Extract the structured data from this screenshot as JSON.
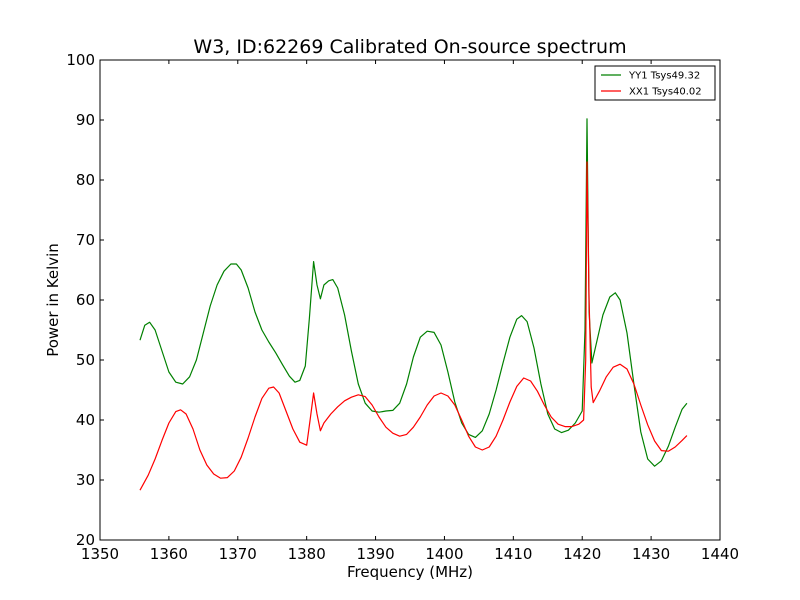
{
  "chart_data": {
    "type": "line",
    "title": "W3, ID:62269 Calibrated On-source spectrum",
    "xlabel": "Frequency (MHz)",
    "ylabel": "Power in Kelvin",
    "xlim": [
      1350,
      1440
    ],
    "ylim": [
      20,
      100
    ],
    "xticks": [
      "1350",
      "1360",
      "1370",
      "1380",
      "1390",
      "1400",
      "1410",
      "1420",
      "1430",
      "1440"
    ],
    "yticks": [
      "20",
      "30",
      "40",
      "50",
      "60",
      "70",
      "80",
      "90",
      "100"
    ],
    "grid": false,
    "legend_position": "top-right",
    "series": [
      {
        "name": "YY1 Tsys49.32",
        "color": "#008000",
        "points": [
          [
            1355.8,
            53.3
          ],
          [
            1356.5,
            55.8
          ],
          [
            1357.2,
            56.3
          ],
          [
            1358.0,
            55.0
          ],
          [
            1359.0,
            51.5
          ],
          [
            1360.0,
            48.0
          ],
          [
            1361.0,
            46.3
          ],
          [
            1362.0,
            46.0
          ],
          [
            1363.0,
            47.2
          ],
          [
            1364.0,
            50.0
          ],
          [
            1365.0,
            54.5
          ],
          [
            1366.0,
            59.0
          ],
          [
            1367.0,
            62.5
          ],
          [
            1368.0,
            64.8
          ],
          [
            1369.0,
            66.0
          ],
          [
            1369.8,
            66.0
          ],
          [
            1370.5,
            65.0
          ],
          [
            1371.5,
            62.0
          ],
          [
            1372.5,
            58.0
          ],
          [
            1373.5,
            55.0
          ],
          [
            1374.5,
            53.0
          ],
          [
            1375.5,
            51.2
          ],
          [
            1376.5,
            49.2
          ],
          [
            1377.5,
            47.3
          ],
          [
            1378.3,
            46.3
          ],
          [
            1379.0,
            46.6
          ],
          [
            1379.8,
            49.0
          ],
          [
            1380.4,
            57.0
          ],
          [
            1381.0,
            66.4
          ],
          [
            1381.5,
            62.5
          ],
          [
            1382.0,
            60.2
          ],
          [
            1382.5,
            62.5
          ],
          [
            1383.2,
            63.2
          ],
          [
            1383.8,
            63.4
          ],
          [
            1384.5,
            62.0
          ],
          [
            1385.5,
            57.5
          ],
          [
            1386.5,
            51.5
          ],
          [
            1387.5,
            46.0
          ],
          [
            1388.5,
            42.8
          ],
          [
            1389.5,
            41.5
          ],
          [
            1390.5,
            41.3
          ],
          [
            1391.5,
            41.5
          ],
          [
            1392.5,
            41.6
          ],
          [
            1393.5,
            42.8
          ],
          [
            1394.5,
            46.0
          ],
          [
            1395.5,
            50.5
          ],
          [
            1396.5,
            53.8
          ],
          [
            1397.5,
            54.8
          ],
          [
            1398.5,
            54.6
          ],
          [
            1399.5,
            52.5
          ],
          [
            1400.5,
            48.0
          ],
          [
            1401.5,
            43.0
          ],
          [
            1402.5,
            39.5
          ],
          [
            1403.5,
            37.6
          ],
          [
            1404.5,
            37.1
          ],
          [
            1405.5,
            38.2
          ],
          [
            1406.5,
            41.0
          ],
          [
            1407.5,
            45.0
          ],
          [
            1408.5,
            49.5
          ],
          [
            1409.5,
            53.8
          ],
          [
            1410.5,
            56.8
          ],
          [
            1411.2,
            57.4
          ],
          [
            1412.0,
            56.4
          ],
          [
            1413.0,
            52.0
          ],
          [
            1414.0,
            46.0
          ],
          [
            1415.0,
            41.0
          ],
          [
            1416.0,
            38.5
          ],
          [
            1417.0,
            37.9
          ],
          [
            1418.0,
            38.3
          ],
          [
            1419.0,
            39.5
          ],
          [
            1420.0,
            41.5
          ],
          [
            1420.4,
            55.0
          ],
          [
            1420.7,
            90.2
          ],
          [
            1421.0,
            58.0
          ],
          [
            1421.4,
            49.5
          ],
          [
            1422.0,
            52.5
          ],
          [
            1423.0,
            57.5
          ],
          [
            1424.0,
            60.5
          ],
          [
            1424.8,
            61.2
          ],
          [
            1425.5,
            60.0
          ],
          [
            1426.5,
            54.5
          ],
          [
            1427.5,
            46.0
          ],
          [
            1428.5,
            38.0
          ],
          [
            1429.5,
            33.5
          ],
          [
            1430.5,
            32.3
          ],
          [
            1431.5,
            33.2
          ],
          [
            1432.5,
            35.6
          ],
          [
            1433.5,
            38.8
          ],
          [
            1434.5,
            41.8
          ],
          [
            1435.2,
            42.8
          ]
        ]
      },
      {
        "name": "XX1 Tsys40.02",
        "color": "#ff0000",
        "points": [
          [
            1355.8,
            28.3
          ],
          [
            1357.0,
            30.8
          ],
          [
            1358.0,
            33.5
          ],
          [
            1359.0,
            36.6
          ],
          [
            1360.0,
            39.5
          ],
          [
            1361.0,
            41.4
          ],
          [
            1361.7,
            41.7
          ],
          [
            1362.5,
            41.0
          ],
          [
            1363.5,
            38.5
          ],
          [
            1364.5,
            35.0
          ],
          [
            1365.5,
            32.5
          ],
          [
            1366.5,
            31.0
          ],
          [
            1367.5,
            30.3
          ],
          [
            1368.5,
            30.4
          ],
          [
            1369.5,
            31.5
          ],
          [
            1370.5,
            33.8
          ],
          [
            1371.5,
            37.0
          ],
          [
            1372.5,
            40.5
          ],
          [
            1373.5,
            43.6
          ],
          [
            1374.5,
            45.3
          ],
          [
            1375.2,
            45.5
          ],
          [
            1376.0,
            44.5
          ],
          [
            1377.0,
            41.5
          ],
          [
            1378.0,
            38.5
          ],
          [
            1379.0,
            36.3
          ],
          [
            1380.0,
            35.8
          ],
          [
            1380.5,
            40.0
          ],
          [
            1381.0,
            44.5
          ],
          [
            1381.5,
            41.0
          ],
          [
            1382.0,
            38.2
          ],
          [
            1382.5,
            39.5
          ],
          [
            1383.5,
            41.0
          ],
          [
            1384.5,
            42.2
          ],
          [
            1385.5,
            43.2
          ],
          [
            1386.5,
            43.8
          ],
          [
            1387.5,
            44.2
          ],
          [
            1388.5,
            43.9
          ],
          [
            1389.5,
            42.5
          ],
          [
            1390.5,
            40.5
          ],
          [
            1391.5,
            38.8
          ],
          [
            1392.5,
            37.8
          ],
          [
            1393.5,
            37.3
          ],
          [
            1394.5,
            37.6
          ],
          [
            1395.5,
            38.8
          ],
          [
            1396.5,
            40.5
          ],
          [
            1397.5,
            42.5
          ],
          [
            1398.5,
            44.0
          ],
          [
            1399.5,
            44.5
          ],
          [
            1400.5,
            44.0
          ],
          [
            1401.5,
            42.5
          ],
          [
            1402.5,
            40.0
          ],
          [
            1403.5,
            37.3
          ],
          [
            1404.5,
            35.5
          ],
          [
            1405.5,
            35.0
          ],
          [
            1406.5,
            35.5
          ],
          [
            1407.5,
            37.3
          ],
          [
            1408.5,
            40.0
          ],
          [
            1409.5,
            43.0
          ],
          [
            1410.5,
            45.6
          ],
          [
            1411.5,
            47.0
          ],
          [
            1412.5,
            46.5
          ],
          [
            1413.5,
            44.8
          ],
          [
            1414.5,
            42.5
          ],
          [
            1415.5,
            40.5
          ],
          [
            1416.5,
            39.3
          ],
          [
            1417.5,
            38.9
          ],
          [
            1418.5,
            38.9
          ],
          [
            1419.5,
            39.3
          ],
          [
            1420.2,
            40.0
          ],
          [
            1420.5,
            50.0
          ],
          [
            1420.7,
            83.0
          ],
          [
            1421.0,
            60.0
          ],
          [
            1421.3,
            45.5
          ],
          [
            1421.6,
            42.9
          ],
          [
            1422.5,
            44.8
          ],
          [
            1423.5,
            47.2
          ],
          [
            1424.5,
            48.8
          ],
          [
            1425.5,
            49.3
          ],
          [
            1426.5,
            48.5
          ],
          [
            1427.5,
            46.0
          ],
          [
            1428.5,
            42.5
          ],
          [
            1429.5,
            39.2
          ],
          [
            1430.5,
            36.5
          ],
          [
            1431.5,
            34.9
          ],
          [
            1432.5,
            34.8
          ],
          [
            1433.5,
            35.5
          ],
          [
            1434.5,
            36.6
          ],
          [
            1435.2,
            37.4
          ]
        ]
      }
    ]
  }
}
